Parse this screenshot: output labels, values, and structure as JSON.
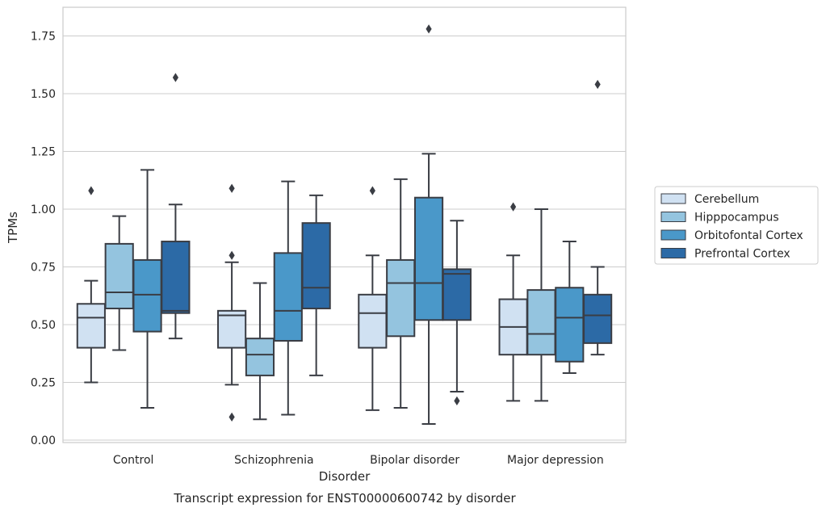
{
  "chart_data": {
    "type": "box",
    "caption": "Transcript expression for ENST00000600742 by disorder",
    "xlabel": "Disorder",
    "ylabel": "TPMs",
    "ylim": [
      -0.01,
      1.86
    ],
    "yticks": [
      "0.00",
      "0.25",
      "0.50",
      "0.75",
      "1.00",
      "1.25",
      "1.50",
      "1.75"
    ],
    "grid": true,
    "legend_position": "right",
    "categories": [
      "Control",
      "Schizophrenia",
      "Bipolar disorder",
      "Major depression"
    ],
    "series": [
      {
        "name": "Cerebellum",
        "color": "#d0e1f2",
        "boxes": [
          {
            "whislo": 0.25,
            "q1": 0.4,
            "med": 0.53,
            "q3": 0.59,
            "whishi": 0.69,
            "fliers": [
              1.08
            ]
          },
          {
            "whislo": 0.24,
            "q1": 0.4,
            "med": 0.54,
            "q3": 0.56,
            "whishi": 0.77,
            "fliers": [
              0.8,
              1.09,
              0.1
            ]
          },
          {
            "whislo": 0.13,
            "q1": 0.4,
            "med": 0.55,
            "q3": 0.63,
            "whishi": 0.8,
            "fliers": [
              1.08
            ]
          },
          {
            "whislo": 0.17,
            "q1": 0.37,
            "med": 0.49,
            "q3": 0.61,
            "whishi": 0.8,
            "fliers": [
              1.01
            ]
          }
        ]
      },
      {
        "name": "Hipppocampus",
        "color": "#94c4df",
        "boxes": [
          {
            "whislo": 0.39,
            "q1": 0.57,
            "med": 0.64,
            "q3": 0.85,
            "whishi": 0.97,
            "fliers": []
          },
          {
            "whislo": 0.09,
            "q1": 0.28,
            "med": 0.37,
            "q3": 0.44,
            "whishi": 0.68,
            "fliers": []
          },
          {
            "whislo": 0.14,
            "q1": 0.45,
            "med": 0.68,
            "q3": 0.78,
            "whishi": 1.13,
            "fliers": []
          },
          {
            "whislo": 0.17,
            "q1": 0.37,
            "med": 0.46,
            "q3": 0.65,
            "whishi": 1.0,
            "fliers": []
          }
        ]
      },
      {
        "name": "Orbitofontal Cortex",
        "color": "#4a98c9",
        "boxes": [
          {
            "whislo": 0.14,
            "q1": 0.47,
            "med": 0.63,
            "q3": 0.78,
            "whishi": 1.17,
            "fliers": []
          },
          {
            "whislo": 0.11,
            "q1": 0.43,
            "med": 0.56,
            "q3": 0.81,
            "whishi": 1.12,
            "fliers": []
          },
          {
            "whislo": 0.07,
            "q1": 0.52,
            "med": 0.68,
            "q3": 1.05,
            "whishi": 1.24,
            "fliers": [
              1.78
            ]
          },
          {
            "whislo": 0.29,
            "q1": 0.34,
            "med": 0.53,
            "q3": 0.66,
            "whishi": 0.86,
            "fliers": []
          }
        ]
      },
      {
        "name": "Prefrontal Cortex",
        "color": "#2c6aa6",
        "boxes": [
          {
            "whislo": 0.44,
            "q1": 0.55,
            "med": 0.56,
            "q3": 0.86,
            "whishi": 1.02,
            "fliers": [
              1.57
            ]
          },
          {
            "whislo": 0.28,
            "q1": 0.57,
            "med": 0.66,
            "q3": 0.94,
            "whishi": 1.06,
            "fliers": []
          },
          {
            "whislo": 0.21,
            "q1": 0.52,
            "med": 0.72,
            "q3": 0.74,
            "whishi": 0.95,
            "fliers": [
              0.17
            ]
          },
          {
            "whislo": 0.37,
            "q1": 0.42,
            "med": 0.54,
            "q3": 0.63,
            "whishi": 0.75,
            "fliers": [
              1.54
            ]
          }
        ]
      }
    ]
  }
}
